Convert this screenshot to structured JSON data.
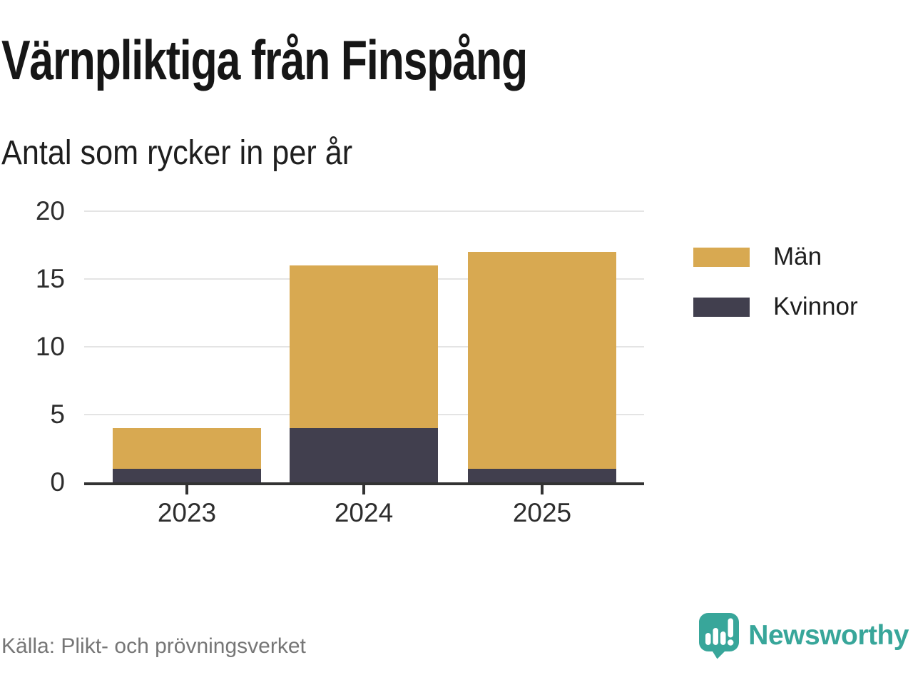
{
  "header": {
    "title": "Värnpliktiga från Finspång",
    "subtitle": "Antal som rycker in per år"
  },
  "chart_data": {
    "type": "bar",
    "stacked": true,
    "title": "Värnpliktiga från Finspång",
    "subtitle": "Antal som rycker in per år",
    "categories": [
      "2023",
      "2024",
      "2025"
    ],
    "series": [
      {
        "name": "Kvinnor",
        "color": "#413f4e",
        "values": [
          1,
          4,
          1
        ]
      },
      {
        "name": "Män",
        "color": "#d8a951",
        "values": [
          3,
          12,
          16
        ]
      }
    ],
    "stack_totals": [
      4,
      16,
      17
    ],
    "xlabel": "",
    "ylabel": "",
    "ylim": [
      0,
      20
    ],
    "yticks": [
      0,
      5,
      10,
      15,
      20
    ],
    "grid": "horizontal",
    "legend_position": "right",
    "bar_centers_frac": [
      0.1834,
      0.4994,
      0.8178
    ],
    "bar_width_frac": 0.266
  },
  "legend": {
    "items": [
      {
        "label": "Män",
        "color": "#d8a951"
      },
      {
        "label": "Kvinnor",
        "color": "#413f4e"
      }
    ]
  },
  "footer": {
    "source": "Källa: Plikt- och prövningsverket",
    "brand": "Newsworthy"
  },
  "colors": {
    "men": "#d8a951",
    "women": "#413f4e",
    "axis": "#333333",
    "grid": "#e4e4e4",
    "tick_text": "#2d2d2d",
    "muted_text": "#767676",
    "brand_teal": "#38a69a"
  }
}
